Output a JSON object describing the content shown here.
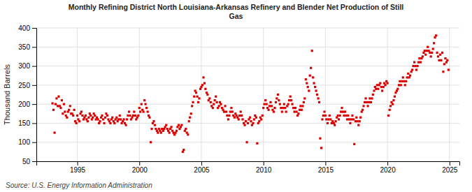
{
  "chart_data": {
    "type": "scatter",
    "title": "Monthly Refining District North Louisiana-Arkansas Refinery and Blender Net Production of Still\nGas",
    "ylabel": "Thousand Barrels",
    "annotations": [
      "Source: U.S. Energy Information Administration"
    ],
    "color": "#dd0000",
    "marker": "square",
    "grid": true,
    "xlim": [
      1991.7,
      2025.8
    ],
    "ylim": [
      50,
      400
    ],
    "xticks": [
      1995,
      2000,
      2005,
      2010,
      2015,
      2020,
      2025
    ],
    "yticks": [
      50,
      100,
      150,
      200,
      250,
      300,
      350,
      400
    ],
    "x": [
      1993.0,
      1993.08,
      1993.17,
      1993.25,
      1993.33,
      1993.42,
      1993.5,
      1993.58,
      1993.67,
      1993.75,
      1993.83,
      1993.92,
      1994.0,
      1994.08,
      1994.17,
      1994.25,
      1994.33,
      1994.42,
      1994.5,
      1994.58,
      1994.67,
      1994.75,
      1994.83,
      1994.92,
      1995.0,
      1995.08,
      1995.17,
      1995.25,
      1995.33,
      1995.42,
      1995.5,
      1995.58,
      1995.67,
      1995.75,
      1995.83,
      1995.92,
      1996.0,
      1996.08,
      1996.17,
      1996.25,
      1996.33,
      1996.42,
      1996.5,
      1996.58,
      1996.67,
      1996.75,
      1996.83,
      1996.92,
      1997.0,
      1997.08,
      1997.17,
      1997.25,
      1997.33,
      1997.42,
      1997.5,
      1997.58,
      1997.67,
      1997.75,
      1997.83,
      1997.92,
      1998.0,
      1998.08,
      1998.17,
      1998.25,
      1998.33,
      1998.42,
      1998.5,
      1998.58,
      1998.67,
      1998.75,
      1998.83,
      1998.92,
      1999.0,
      1999.08,
      1999.17,
      1999.25,
      1999.33,
      1999.42,
      1999.5,
      1999.58,
      1999.67,
      1999.75,
      1999.83,
      1999.92,
      2000.0,
      2000.08,
      2000.17,
      2000.25,
      2000.33,
      2000.42,
      2000.5,
      2000.58,
      2000.67,
      2000.75,
      2000.83,
      2000.92,
      2001.0,
      2001.08,
      2001.17,
      2001.25,
      2001.33,
      2001.42,
      2001.5,
      2001.58,
      2001.67,
      2001.75,
      2001.83,
      2001.92,
      2002.0,
      2002.08,
      2002.17,
      2002.25,
      2002.33,
      2002.42,
      2002.5,
      2002.58,
      2002.67,
      2002.75,
      2002.83,
      2002.92,
      2003.0,
      2003.08,
      2003.17,
      2003.25,
      2003.33,
      2003.42,
      2003.5,
      2003.58,
      2003.67,
      2003.75,
      2003.83,
      2003.92,
      2004.0,
      2004.08,
      2004.17,
      2004.25,
      2004.33,
      2004.42,
      2004.5,
      2004.58,
      2004.67,
      2004.75,
      2004.83,
      2004.92,
      2005.0,
      2005.08,
      2005.17,
      2005.25,
      2005.33,
      2005.42,
      2005.5,
      2005.58,
      2005.67,
      2005.75,
      2005.83,
      2005.92,
      2006.0,
      2006.08,
      2006.17,
      2006.25,
      2006.33,
      2006.42,
      2006.5,
      2006.58,
      2006.67,
      2006.75,
      2006.83,
      2006.92,
      2007.0,
      2007.08,
      2007.17,
      2007.25,
      2007.33,
      2007.42,
      2007.5,
      2007.58,
      2007.67,
      2007.75,
      2007.83,
      2007.92,
      2008.0,
      2008.08,
      2008.17,
      2008.25,
      2008.33,
      2008.42,
      2008.5,
      2008.58,
      2008.67,
      2008.75,
      2008.83,
      2008.92,
      2009.0,
      2009.08,
      2009.17,
      2009.25,
      2009.33,
      2009.42,
      2009.5,
      2009.58,
      2009.67,
      2009.75,
      2009.83,
      2009.92,
      2010.0,
      2010.08,
      2010.17,
      2010.25,
      2010.33,
      2010.42,
      2010.5,
      2010.58,
      2010.67,
      2010.75,
      2010.83,
      2010.92,
      2011.0,
      2011.08,
      2011.17,
      2011.25,
      2011.33,
      2011.42,
      2011.5,
      2011.58,
      2011.67,
      2011.75,
      2011.83,
      2011.92,
      2012.0,
      2012.08,
      2012.17,
      2012.25,
      2012.33,
      2012.42,
      2012.5,
      2012.58,
      2012.67,
      2012.75,
      2012.83,
      2012.92,
      2013.0,
      2013.08,
      2013.17,
      2013.25,
      2013.33,
      2013.42,
      2013.5,
      2013.58,
      2013.67,
      2013.75,
      2013.83,
      2013.92,
      2014.0,
      2014.08,
      2014.17,
      2014.25,
      2014.33,
      2014.42,
      2014.5,
      2014.58,
      2014.67,
      2014.75,
      2014.83,
      2014.92,
      2015.0,
      2015.08,
      2015.17,
      2015.25,
      2015.33,
      2015.42,
      2015.5,
      2015.58,
      2015.67,
      2015.75,
      2015.83,
      2015.92,
      2016.0,
      2016.08,
      2016.17,
      2016.25,
      2016.33,
      2016.42,
      2016.5,
      2016.58,
      2016.67,
      2016.75,
      2016.83,
      2016.92,
      2017.0,
      2017.08,
      2017.17,
      2017.25,
      2017.33,
      2017.42,
      2017.5,
      2017.58,
      2017.67,
      2017.75,
      2017.83,
      2017.92,
      2018.0,
      2018.08,
      2018.17,
      2018.25,
      2018.33,
      2018.42,
      2018.5,
      2018.58,
      2018.67,
      2018.75,
      2018.83,
      2018.92,
      2019.0,
      2019.08,
      2019.17,
      2019.25,
      2019.33,
      2019.42,
      2019.5,
      2019.58,
      2019.67,
      2019.75,
      2019.83,
      2019.92,
      2020.0,
      2020.08,
      2020.17,
      2020.25,
      2020.33,
      2020.42,
      2020.5,
      2020.58,
      2020.67,
      2020.75,
      2020.83,
      2020.92,
      2021.0,
      2021.08,
      2021.17,
      2021.25,
      2021.33,
      2021.42,
      2021.5,
      2021.58,
      2021.67,
      2021.75,
      2021.83,
      2021.92,
      2022.0,
      2022.08,
      2022.17,
      2022.25,
      2022.33,
      2022.42,
      2022.5,
      2022.58,
      2022.67,
      2022.75,
      2022.83,
      2022.92,
      2023.0,
      2023.08,
      2023.17,
      2023.25,
      2023.33,
      2023.42,
      2023.5,
      2023.58,
      2023.67,
      2023.75,
      2023.83,
      2023.92,
      2024.0,
      2024.08,
      2024.17,
      2024.25,
      2024.33,
      2024.42,
      2024.5,
      2024.58,
      2024.67,
      2024.75,
      2024.83,
      2024.92
    ],
    "values": [
      202,
      185,
      125,
      200,
      215,
      195,
      220,
      195,
      190,
      210,
      175,
      200,
      180,
      170,
      165,
      180,
      185,
      195,
      175,
      175,
      170,
      185,
      155,
      150,
      170,
      160,
      155,
      175,
      180,
      170,
      160,
      165,
      170,
      160,
      155,
      165,
      175,
      170,
      160,
      165,
      175,
      170,
      160,
      165,
      160,
      150,
      155,
      165,
      170,
      160,
      150,
      165,
      175,
      170,
      160,
      155,
      150,
      160,
      165,
      155,
      150,
      160,
      165,
      155,
      160,
      170,
      160,
      150,
      155,
      160,
      150,
      145,
      160,
      170,
      180,
      170,
      160,
      165,
      170,
      180,
      170,
      160,
      165,
      170,
      190,
      180,
      200,
      185,
      180,
      210,
      200,
      190,
      180,
      170,
      165,
      100,
      135,
      150,
      155,
      145,
      135,
      130,
      125,
      135,
      130,
      125,
      135,
      130,
      135,
      140,
      145,
      135,
      130,
      125,
      135,
      140,
      130,
      125,
      120,
      125,
      130,
      140,
      145,
      135,
      140,
      145,
      75,
      80,
      130,
      135,
      125,
      120,
      155,
      165,
      175,
      195,
      205,
      220,
      235,
      230,
      220,
      205,
      215,
      240,
      245,
      250,
      270,
      255,
      240,
      230,
      225,
      210,
      215,
      205,
      195,
      190,
      200,
      210,
      220,
      205,
      190,
      195,
      205,
      200,
      190,
      185,
      180,
      195,
      180,
      170,
      160,
      170,
      180,
      190,
      180,
      170,
      165,
      175,
      170,
      165,
      160,
      170,
      180,
      170,
      160,
      150,
      145,
      155,
      100,
      150,
      160,
      165,
      155,
      145,
      150,
      160,
      170,
      165,
      97,
      150,
      155,
      165,
      160,
      170,
      190,
      200,
      210,
      200,
      190,
      185,
      195,
      205,
      195,
      185,
      180,
      190,
      205,
      215,
      225,
      210,
      200,
      190,
      180,
      190,
      200,
      190,
      180,
      195,
      200,
      210,
      220,
      210,
      200,
      190,
      180,
      190,
      180,
      170,
      175,
      185,
      195,
      185,
      195,
      205,
      215,
      265,
      255,
      245,
      235,
      275,
      295,
      340,
      270,
      255,
      245,
      235,
      225,
      215,
      205,
      110,
      85,
      160,
      170,
      180,
      170,
      160,
      150,
      160,
      170,
      160,
      150,
      155,
      150,
      145,
      155,
      165,
      170,
      160,
      170,
      180,
      190,
      180,
      170,
      180,
      170,
      160,
      170,
      160,
      150,
      160,
      170,
      160,
      95,
      155,
      165,
      155,
      145,
      155,
      165,
      180,
      185,
      195,
      205,
      215,
      205,
      195,
      205,
      215,
      205,
      215,
      225,
      235,
      245,
      240,
      250,
      240,
      250,
      255,
      245,
      235,
      245,
      255,
      250,
      260,
      255,
      170,
      185,
      195,
      205,
      200,
      210,
      220,
      230,
      235,
      240,
      250,
      260,
      250,
      260,
      270,
      260,
      250,
      260,
      270,
      280,
      270,
      275,
      285,
      290,
      300,
      310,
      300,
      290,
      300,
      310,
      320,
      310,
      320,
      325,
      335,
      340,
      330,
      340,
      350,
      340,
      335,
      325,
      335,
      345,
      360,
      375,
      380,
      335,
      325,
      315,
      330,
      315,
      335,
      285,
      305,
      320,
      310,
      315,
      290
    ]
  }
}
